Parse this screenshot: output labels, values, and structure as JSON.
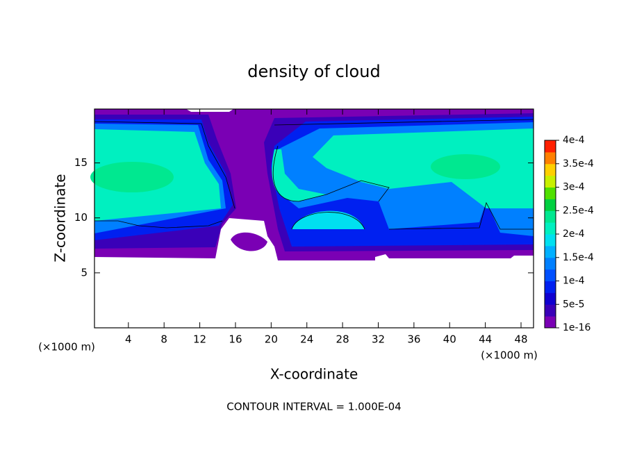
{
  "chart_data": {
    "type": "contour",
    "title": "density of cloud",
    "xlabel": "X-coordinate",
    "ylabel": "Z-coordinate",
    "xunit": "(×1000 m)",
    "xunit_right": "(×1000 m)",
    "footer": "CONTOUR INTERVAL = 1.000E-04",
    "xlim": [
      0.2,
      49.4
    ],
    "ylim": [
      0,
      19.9
    ],
    "xticks": [
      4,
      8,
      12,
      16,
      20,
      24,
      28,
      32,
      36,
      40,
      44,
      48
    ],
    "yticks": [
      5,
      10,
      15
    ],
    "colorbar": {
      "lim": [
        0,
        0.0004
      ],
      "ticks": [
        {
          "value": 1e-16,
          "label": "1e-16"
        },
        {
          "value": 5e-05,
          "label": "5e-5"
        },
        {
          "value": 0.0001,
          "label": "1e-4"
        },
        {
          "value": 0.00015,
          "label": "1.5e-4"
        },
        {
          "value": 0.0002,
          "label": "2e-4"
        },
        {
          "value": 0.00025,
          "label": "2.5e-4"
        },
        {
          "value": 0.0003,
          "label": "3e-4"
        },
        {
          "value": 0.00035,
          "label": "3.5e-4"
        },
        {
          "value": 0.0004,
          "label": "4e-4"
        }
      ],
      "colors": [
        "#7a00b4",
        "#3a00b8",
        "#1000d0",
        "#0020f0",
        "#0050ff",
        "#0080ff",
        "#00b0ff",
        "#00e0f0",
        "#00f0c0",
        "#00e890",
        "#00d040",
        "#50e000",
        "#c8f000",
        "#ffd000",
        "#ff8000",
        "#ff2000",
        "#ff9090"
      ]
    }
  }
}
